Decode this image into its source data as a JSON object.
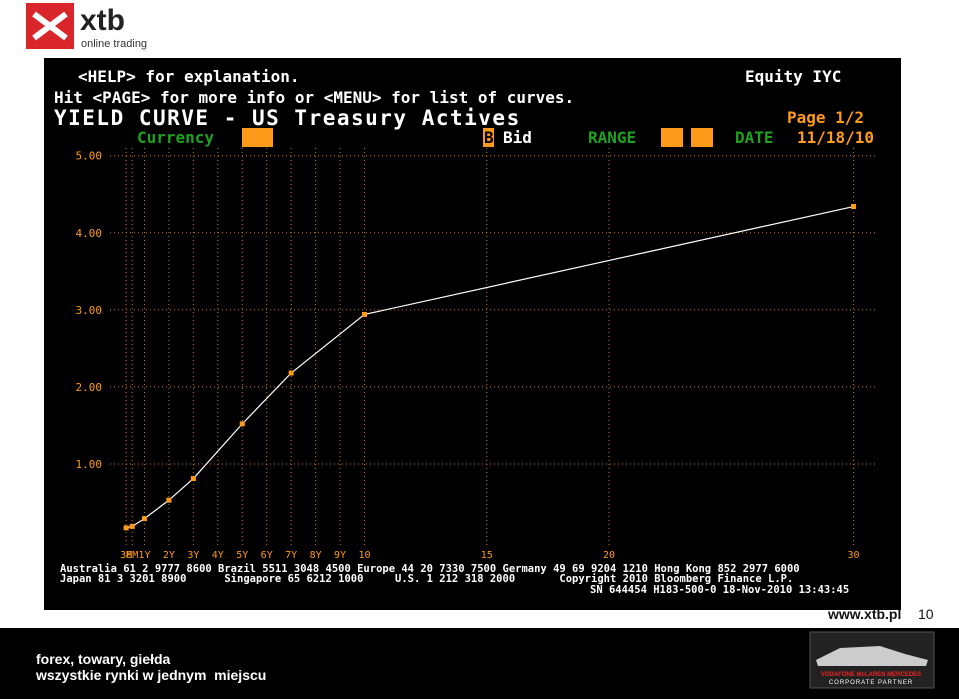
{
  "logo": {
    "brand": "xtb",
    "tagline": "online trading"
  },
  "terminal": {
    "help_line": "<HELP> for explanation.",
    "function": "Equity IYC",
    "hint_line": "Hit <PAGE> for more info or <MENU> for list of curves.",
    "page": "Page 1/2",
    "currency_label": "Currency",
    "bid_flag": "B",
    "bid_label": "Bid",
    "range_label": "RANGE",
    "date_label": "DATE",
    "date": "11/18/10",
    "footer_lines": [
      "Australia 61 2 9777 8600 Brazil 5511 3048 4500 Europe 44 20 7330 7500 Germany 49 69 9204 1210 Hong Kong 852 2977 6000",
      "Japan 81 3 3201 8900      Singapore 65 6212 1000     U.S. 1 212 318 2000       Copyright 2010 Bloomberg Finance L.P.",
      "SN 644454 H183-500-0 18-Nov-2010 13:43:45"
    ]
  },
  "chart_data": {
    "type": "line",
    "title": "YIELD CURVE - US Treasury Actives",
    "x": [
      0.25,
      0.5,
      1,
      2,
      3,
      5,
      7,
      10,
      30
    ],
    "series": [
      {
        "name": "Bid",
        "color": "#ffffff",
        "marker_color": "#ff9a1a",
        "values": [
          0.17,
          0.19,
          0.29,
          0.53,
          0.81,
          1.52,
          2.18,
          2.94,
          4.34
        ]
      }
    ],
    "xlim": [
      0,
      31
    ],
    "ylim": [
      0,
      5.1
    ],
    "xticks": [
      {
        "value": 0.25,
        "label": "3M"
      },
      {
        "value": 0.5,
        "label": "6M"
      },
      {
        "value": 1,
        "label": "1Y"
      },
      {
        "value": 2,
        "label": "2Y"
      },
      {
        "value": 3,
        "label": "3Y"
      },
      {
        "value": 4,
        "label": "4Y"
      },
      {
        "value": 5,
        "label": "5Y"
      },
      {
        "value": 6,
        "label": "6Y"
      },
      {
        "value": 7,
        "label": "7Y"
      },
      {
        "value": 8,
        "label": "8Y"
      },
      {
        "value": 9,
        "label": "9Y"
      },
      10,
      15,
      20,
      30
    ],
    "yticks": [
      {
        "value": 1,
        "label": "1.00"
      },
      {
        "value": 2,
        "label": "2.00"
      },
      {
        "value": 3,
        "label": "3.00"
      },
      {
        "value": 4,
        "label": "4.00"
      },
      {
        "value": 5,
        "label": "5.00"
      }
    ],
    "grid": true
  },
  "footer": {
    "url": "www.xtb.pl",
    "slide_number": "10",
    "slogan_1": "forex, towary, giełda",
    "slogan_2": "wszystkie rynki w jednym  miejscu",
    "partner": "VODAFONE McLAREN MERCEDES",
    "partner_sub": "CORPORATE PARTNER"
  }
}
